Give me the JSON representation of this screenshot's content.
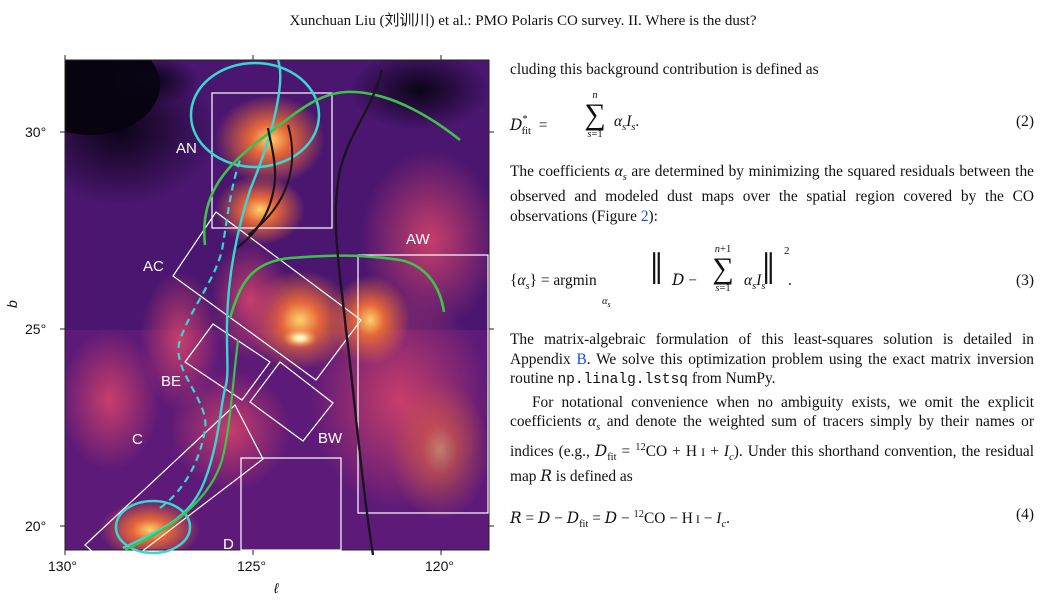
{
  "header": "Xunchuan Liu (刘训川) et al.: PMO Polaris CO survey. II. Where is the dust?",
  "figure": {
    "x_label": "ℓ",
    "y_label": "b",
    "x_ticks": [
      "130°",
      "125°",
      "120°"
    ],
    "y_ticks": [
      "30°",
      "25°",
      "20°"
    ],
    "regions": [
      "AN",
      "AC",
      "AW",
      "BE",
      "BW",
      "C",
      "D"
    ]
  },
  "text": {
    "p1": "cluding this background contribution is defined as",
    "eq2_num": "(2)",
    "p2": "The coefficients αs are determined by minimizing the squared residuals between the observed and modeled dust maps over the spatial region covered by the CO observations (Figure 2):",
    "eq3_num": "(3)",
    "p3a": "The matrix-algebraic formulation of this least-squares solution is detailed in Appendix",
    "p3_link": "B",
    "p3b": ". We solve this optimization problem using the exact matrix inversion routine",
    "p3_code": "np.linalg.lstsq",
    "p3c": "from NumPy.",
    "p4": "For notational convenience when no ambiguity exists, we omit the explicit coefficients αs and denote the weighted sum of tracers simply by their names or indices (e.g., Dfit = 12CO + H I + Ic). Under this shorthand convention, the residual map R is defined as",
    "eq4_num": "(4)"
  }
}
